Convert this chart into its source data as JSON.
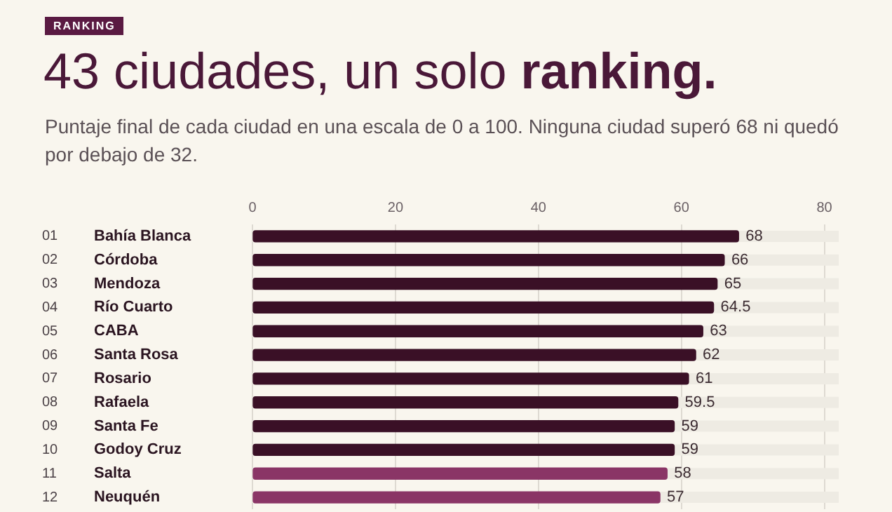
{
  "chart_data": {
    "type": "bar",
    "orientation": "horizontal",
    "title": "43 ciudades, un solo ranking.",
    "subtitle": "Puntaje final de cada ciudad en una escala de 0 a 100. Ninguna ciudad superó 68 ni quedó por debajo de 32.",
    "annotations": [
      "RANKING",
      "01",
      "02",
      "03",
      "04",
      "05",
      "06",
      "07",
      "08",
      "09",
      "10",
      "11",
      "12"
    ],
    "categories": [
      "Bahía Blanca",
      "Córdoba",
      "Mendoza",
      "Río Cuarto",
      "CABA",
      "Santa Rosa",
      "Rosario",
      "Rafaela",
      "Santa Fe",
      "Godoy Cruz",
      "Salta",
      "Neuquén"
    ],
    "values": [
      68,
      66,
      65,
      64.5,
      63,
      62,
      61,
      59.5,
      59,
      59,
      58,
      57
    ],
    "colors": [
      "#3a1026",
      "#3a1026",
      "#3a1026",
      "#3a1026",
      "#3a1026",
      "#3a1026",
      "#3a1026",
      "#3a1026",
      "#3a1026",
      "#3a1026",
      "#8a3566",
      "#8a3566"
    ],
    "xlim": [
      0,
      82
    ],
    "xticks": [
      0,
      20,
      40,
      60,
      80
    ],
    "grid": "x",
    "data_labels": true
  }
}
